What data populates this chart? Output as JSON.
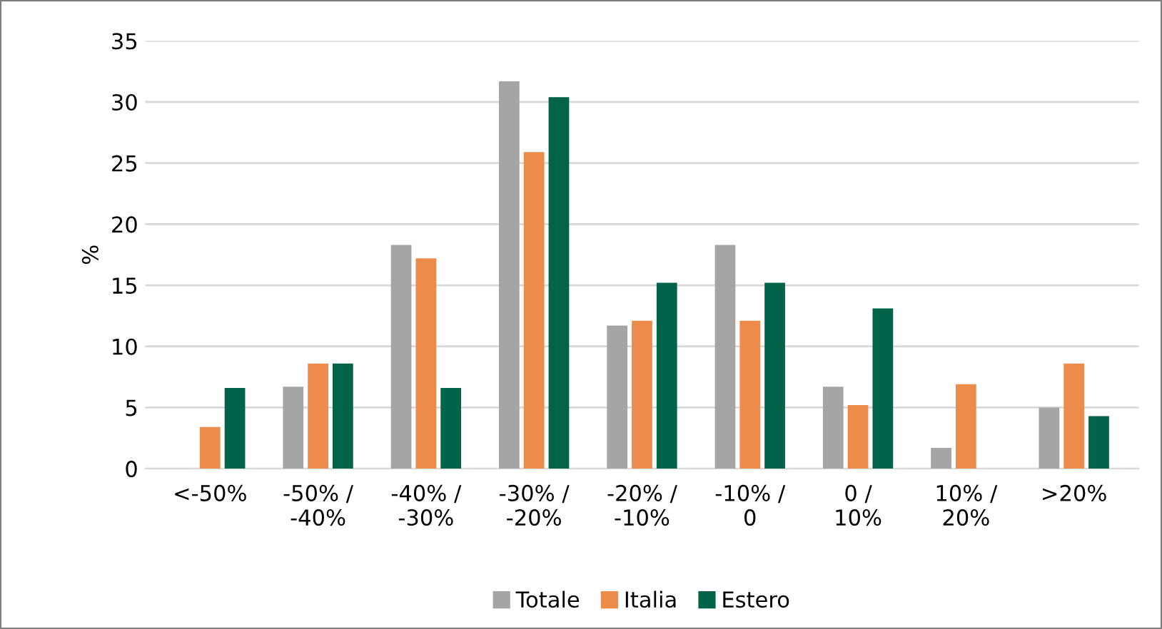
{
  "chart_data": {
    "type": "bar",
    "ylabel": "%",
    "categories": [
      "<-50%",
      "-50% /\n-40%",
      "-40% /\n-30%",
      "-30% /\n-20%",
      "-20% /\n-10%",
      "-10% /\n0",
      "0 /\n10%",
      "10% /\n20%",
      ">20%"
    ],
    "series": [
      {
        "name": "Totale",
        "color": "#a5a5a5",
        "values": [
          null,
          6.7,
          18.3,
          31.7,
          11.7,
          18.3,
          6.7,
          1.7,
          5.0
        ]
      },
      {
        "name": "Italia",
        "color": "#ed8c4a",
        "values": [
          3.4,
          8.6,
          17.2,
          25.9,
          12.1,
          12.1,
          5.2,
          6.9,
          8.6
        ]
      },
      {
        "name": "Estero",
        "color": "#00634a",
        "values": [
          6.6,
          8.6,
          6.6,
          30.4,
          15.2,
          15.2,
          13.1,
          null,
          4.3
        ]
      }
    ],
    "ylim": [
      0,
      35
    ],
    "yticks": [
      0,
      5,
      10,
      15,
      20,
      25,
      30,
      35
    ],
    "grid": "y",
    "legend": "bottom"
  }
}
